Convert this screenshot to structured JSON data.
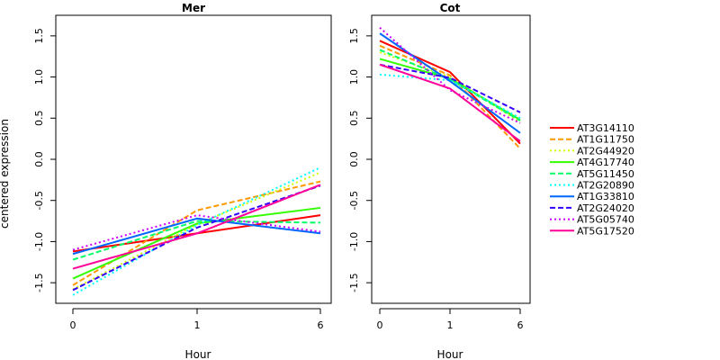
{
  "chart_data": [
    {
      "type": "line",
      "title": "Mer",
      "xlabel": "Hour",
      "ylabel": "centered expression",
      "x": [
        "0",
        "1",
        "6"
      ],
      "ylim": [
        -1.75,
        1.75
      ],
      "yticks": [
        "-1.5",
        "-1.0",
        "-0.5",
        "0.0",
        "0.5",
        "1.0",
        "1.5"
      ],
      "series": [
        {
          "name": "AT3G14110",
          "values": [
            -1.12,
            -0.9,
            -0.68
          ]
        },
        {
          "name": "AT1G11750",
          "values": [
            -1.53,
            -0.62,
            -0.27
          ]
        },
        {
          "name": "AT2G44920",
          "values": [
            -1.58,
            -0.79,
            -0.16
          ]
        },
        {
          "name": "AT4G17740",
          "values": [
            -1.45,
            -0.78,
            -0.59
          ]
        },
        {
          "name": "AT5G11450",
          "values": [
            -1.22,
            -0.75,
            -0.77
          ]
        },
        {
          "name": "AT2G20890",
          "values": [
            -1.65,
            -0.8,
            -0.1
          ]
        },
        {
          "name": "AT1G33810",
          "values": [
            -1.15,
            -0.72,
            -0.9
          ]
        },
        {
          "name": "AT2G24020",
          "values": [
            -1.59,
            -0.83,
            -0.32
          ]
        },
        {
          "name": "AT5G05740",
          "values": [
            -1.1,
            -0.68,
            -0.88
          ]
        },
        {
          "name": "AT5G17520",
          "values": [
            -1.33,
            -0.9,
            -0.31
          ]
        }
      ]
    },
    {
      "type": "line",
      "title": "Cot",
      "xlabel": "Hour",
      "x": [
        "0",
        "1",
        "6"
      ],
      "ylim": [
        -1.75,
        1.75
      ],
      "yticks": [
        "-1.5",
        "-1.0",
        "-0.5",
        "0.0",
        "0.5",
        "1.0",
        "1.5"
      ],
      "series": [
        {
          "name": "AT3G14110",
          "values": [
            1.44,
            1.06,
            0.19
          ]
        },
        {
          "name": "AT1G11750",
          "values": [
            1.38,
            1.02,
            0.13
          ]
        },
        {
          "name": "AT2G44920",
          "values": [
            1.3,
            1.0,
            0.45
          ]
        },
        {
          "name": "AT4G17740",
          "values": [
            1.22,
            0.98,
            0.48
          ]
        },
        {
          "name": "AT5G11450",
          "values": [
            1.33,
            0.97,
            0.47
          ]
        },
        {
          "name": "AT2G20890",
          "values": [
            1.03,
            0.96,
            0.5
          ]
        },
        {
          "name": "AT1G33810",
          "values": [
            1.53,
            0.95,
            0.32
          ]
        },
        {
          "name": "AT2G24020",
          "values": [
            1.15,
            0.99,
            0.57
          ]
        },
        {
          "name": "AT5G05740",
          "values": [
            1.6,
            0.84,
            0.44
          ]
        },
        {
          "name": "AT5G17520",
          "values": [
            1.15,
            0.86,
            0.22
          ]
        }
      ]
    }
  ],
  "legend": {
    "placement": "right",
    "items": [
      {
        "name": "AT3G14110",
        "color": "#FF0000",
        "dash": "solid"
      },
      {
        "name": "AT1G11750",
        "color": "#FF9900",
        "dash": "dashed"
      },
      {
        "name": "AT2G44920",
        "color": "#CCFF00",
        "dash": "dotted"
      },
      {
        "name": "AT4G17740",
        "color": "#33FF00",
        "dash": "solid"
      },
      {
        "name": "AT5G11450",
        "color": "#00FF66",
        "dash": "dashed"
      },
      {
        "name": "AT2G20890",
        "color": "#00FFFF",
        "dash": "dotted"
      },
      {
        "name": "AT1G33810",
        "color": "#0066FF",
        "dash": "solid"
      },
      {
        "name": "AT2G24020",
        "color": "#3300FF",
        "dash": "dashed"
      },
      {
        "name": "AT5G05740",
        "color": "#CC00FF",
        "dash": "dotted"
      },
      {
        "name": "AT5G17520",
        "color": "#FF0099",
        "dash": "solid"
      }
    ]
  }
}
